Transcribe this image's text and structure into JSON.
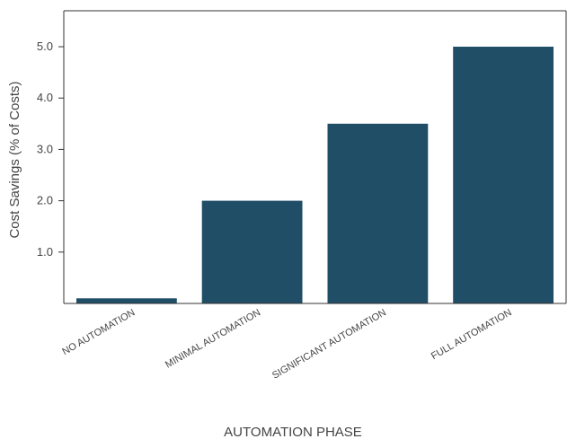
{
  "chart_data": {
    "type": "bar",
    "categories": [
      "NO AUTOMATION",
      "MINIMAL AUTOMATION",
      "SIGNIFICANT AUTOMATION",
      "FULL AUTOMATION"
    ],
    "values": [
      0.1,
      2.0,
      3.5,
      5.0
    ],
    "title": "",
    "xlabel": "AUTOMATION PHASE",
    "ylabel": "Cost Savings (% of Costs)",
    "ylim": [
      0,
      5.7
    ],
    "yticks": [
      1.0,
      2.0,
      3.0,
      4.0,
      5.0
    ],
    "ytick_labels": [
      "1.0",
      "2.0",
      "3.0",
      "4.0",
      "5.0"
    ],
    "bar_color": "#1f4e66",
    "grid": false,
    "legend": "none"
  }
}
